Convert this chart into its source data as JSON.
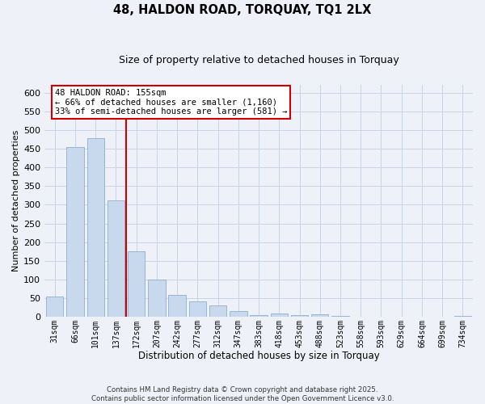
{
  "title": "48, HALDON ROAD, TORQUAY, TQ1 2LX",
  "subtitle": "Size of property relative to detached houses in Torquay",
  "xlabel": "Distribution of detached houses by size in Torquay",
  "ylabel": "Number of detached properties",
  "bar_labels": [
    "31sqm",
    "66sqm",
    "101sqm",
    "137sqm",
    "172sqm",
    "207sqm",
    "242sqm",
    "277sqm",
    "312sqm",
    "347sqm",
    "383sqm",
    "418sqm",
    "453sqm",
    "488sqm",
    "523sqm",
    "558sqm",
    "593sqm",
    "629sqm",
    "664sqm",
    "699sqm",
    "734sqm"
  ],
  "bar_values": [
    55,
    455,
    478,
    312,
    175,
    100,
    58,
    42,
    30,
    15,
    6,
    9,
    5,
    8,
    3,
    0,
    0,
    0,
    0,
    0,
    2
  ],
  "bar_color": "#c8d9ee",
  "bar_edge_color": "#8aaed4",
  "vline_x": 3.5,
  "vline_color": "#cc0000",
  "annotation_title": "48 HALDON ROAD: 155sqm",
  "annotation_line1": "← 66% of detached houses are smaller (1,160)",
  "annotation_line2": "33% of semi-detached houses are larger (581) →",
  "annotation_box_color": "#ffffff",
  "annotation_box_edge": "#cc0000",
  "ylim": [
    0,
    620
  ],
  "yticks": [
    0,
    50,
    100,
    150,
    200,
    250,
    300,
    350,
    400,
    450,
    500,
    550,
    600
  ],
  "grid_color": "#c8d4e8",
  "bg_color": "#eef2f8",
  "footnote1": "Contains HM Land Registry data © Crown copyright and database right 2025.",
  "footnote2": "Contains public sector information licensed under the Open Government Licence v3.0."
}
